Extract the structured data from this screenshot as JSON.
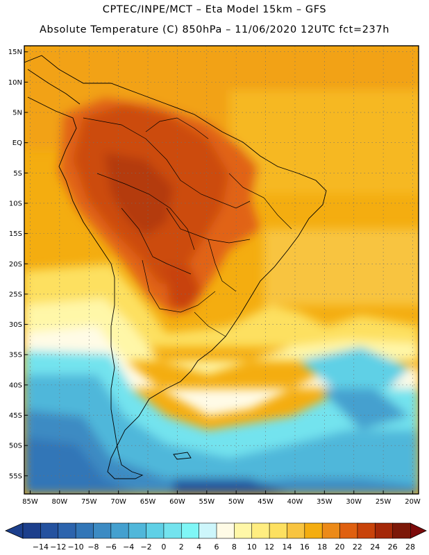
{
  "header": {
    "line1": "CPTEC/INPE/MCT –   Eta Model 15km – GFS",
    "line2": "Absolute Temperature (C) 850hPa – 11/06/2020 12UTC fct=237h"
  },
  "map": {
    "lat_range": [
      -58,
      16
    ],
    "lon_range": [
      -86,
      -19
    ],
    "lat_ticks": [
      {
        "value": 15,
        "label": "15N"
      },
      {
        "value": 10,
        "label": "10N"
      },
      {
        "value": 5,
        "label": "5N"
      },
      {
        "value": 0,
        "label": "EQ"
      },
      {
        "value": -5,
        "label": "5S"
      },
      {
        "value": -10,
        "label": "10S"
      },
      {
        "value": -15,
        "label": "15S"
      },
      {
        "value": -20,
        "label": "20S"
      },
      {
        "value": -25,
        "label": "25S"
      },
      {
        "value": -30,
        "label": "30S"
      },
      {
        "value": -35,
        "label": "35S"
      },
      {
        "value": -40,
        "label": "40S"
      },
      {
        "value": -45,
        "label": "45S"
      },
      {
        "value": -50,
        "label": "50S"
      },
      {
        "value": -55,
        "label": "55S"
      }
    ],
    "lon_ticks": [
      {
        "value": -85,
        "label": "85W"
      },
      {
        "value": -80,
        "label": "80W"
      },
      {
        "value": -75,
        "label": "75W"
      },
      {
        "value": -70,
        "label": "70W"
      },
      {
        "value": -65,
        "label": "65W"
      },
      {
        "value": -60,
        "label": "60W"
      },
      {
        "value": -55,
        "label": "55W"
      },
      {
        "value": -50,
        "label": "50W"
      },
      {
        "value": -45,
        "label": "45W"
      },
      {
        "value": -40,
        "label": "40W"
      },
      {
        "value": -35,
        "label": "35W"
      },
      {
        "value": -30,
        "label": "30W"
      },
      {
        "value": -25,
        "label": "25W"
      },
      {
        "value": -20,
        "label": "20W"
      }
    ]
  },
  "colorbar": {
    "labels": [
      "-14",
      "-12",
      "-10",
      "-8",
      "-6",
      "-4",
      "-2",
      "0",
      "2",
      "4",
      "6",
      "8",
      "10",
      "12",
      "14",
      "16",
      "18",
      "20",
      "22",
      "24",
      "26",
      "28"
    ],
    "colors": [
      "#1c3f8c",
      "#24529f",
      "#2c64ad",
      "#3276b7",
      "#3c8bc3",
      "#44a0cf",
      "#50b7da",
      "#5fd0e6",
      "#73e3ee",
      "#7ff6f6",
      "#cdf6fb",
      "#fffbe6",
      "#fff7a8",
      "#ffed80",
      "#fde060",
      "#f8c440",
      "#f4ad10",
      "#ec8a18",
      "#df6010",
      "#c8430a",
      "#a42808",
      "#7c1808"
    ],
    "end_low": "#1c3f8c",
    "end_high": "#7c0a0a"
  }
}
